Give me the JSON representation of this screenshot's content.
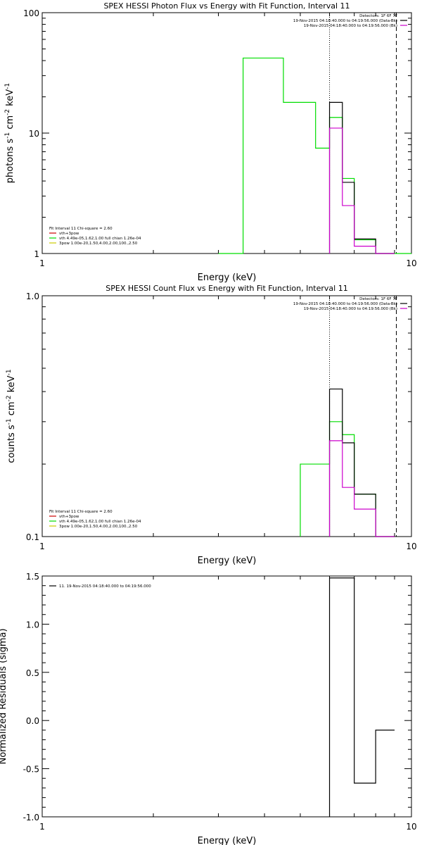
{
  "colors": {
    "data": "#000000",
    "total": "#cc00cc",
    "vth": "#00dd00",
    "bkg": "#cc0000",
    "power": "#cccc00"
  },
  "chart_data": [
    {
      "type": "line",
      "title": "SPEX HESSI Photon Flux vs Energy with Fit Function, Interval 11",
      "xlabel": "Energy (keV)",
      "ylabel": [
        "photons s",
        "-1",
        " cm",
        "-2",
        " keV",
        "-1"
      ],
      "xscale": "log",
      "yscale": "log",
      "xlim": [
        1,
        10
      ],
      "ylim": [
        1,
        100
      ],
      "x_ticks": [
        {
          "v": 1,
          "label": "1"
        },
        {
          "v": 10,
          "label": "10"
        }
      ],
      "y_ticks": [
        {
          "v": 1,
          "label": "1"
        },
        {
          "v": 10,
          "label": "10"
        },
        {
          "v": 100,
          "label": "100"
        }
      ],
      "vlines": [
        {
          "x": 6.0,
          "style": "dotted"
        },
        {
          "x": 9.1,
          "style": "dashed"
        }
      ],
      "header": [
        {
          "text": "Detectors: 1F 6F 7F",
          "color": "data"
        },
        {
          "text": "19-Nov-2015 04:18:40.000 to 04:19:56.000 (Data-Bk)",
          "color": "data"
        },
        {
          "text": "19-Nov-2015 04:18:40.000 to 04:19:56.000 (Bk)",
          "color": "total"
        }
      ],
      "legend": [
        {
          "text": "Fit Interval 11    Chi-square = 2.60",
          "color": "data"
        },
        {
          "text": "vth+3pow",
          "color": "bkg"
        },
        {
          "text": "vth 4.49e-05,1.62,1.00   full chian 1.26e-04",
          "color": "vth"
        },
        {
          "text": "3pow 1.00e-20,1.50,4.00,2.00,100.,2.50",
          "color": "power"
        }
      ],
      "series": [
        {
          "name": "vth 4.49e-05,1.62,1.00   full chian 1.26e-04",
          "color": "vth",
          "edges": [
            3.0,
            3.5,
            4.0,
            4.5,
            5.0,
            5.5,
            6.0,
            6.5,
            7.0,
            8.0,
            9.0,
            10.0
          ],
          "values": [
            0,
            42,
            42,
            18,
            18,
            7.5,
            13.5,
            4.2,
            1.3,
            0,
            0
          ]
        },
        {
          "name": "Data",
          "color": "data",
          "edges": [
            6.0,
            6.5,
            7.0,
            8.0,
            9.0
          ],
          "values": [
            18,
            3.9,
            1.32,
            0
          ]
        },
        {
          "name": "vth+3pow",
          "color": "total",
          "edges": [
            6.0,
            6.5,
            7.0,
            8.0,
            9.0
          ],
          "values": [
            11,
            2.5,
            1.15,
            0
          ]
        }
      ]
    },
    {
      "type": "line",
      "title": "SPEX HESSI Count Flux vs Energy with Fit Function, Interval 11",
      "xlabel": "Energy (keV)",
      "ylabel": [
        "counts s",
        "-1",
        " cm",
        "-2",
        " keV",
        "-1"
      ],
      "xscale": "log",
      "yscale": "log",
      "xlim": [
        1,
        10
      ],
      "ylim": [
        0.1,
        1.0
      ],
      "x_ticks": [
        {
          "v": 1,
          "label": "1"
        },
        {
          "v": 10,
          "label": "10"
        }
      ],
      "y_ticks": [
        {
          "v": 0.1,
          "label": "0.1"
        },
        {
          "v": 1.0,
          "label": "1.0"
        }
      ],
      "vlines": [
        {
          "x": 6.0,
          "style": "dotted"
        },
        {
          "x": 9.1,
          "style": "dashed"
        }
      ],
      "header": [
        {
          "text": "Detectors: 1F 6F 7F",
          "color": "data"
        },
        {
          "text": "19-Nov-2015 04:18:40.000 to 04:19:56.000 (Data-Bk)",
          "color": "data"
        },
        {
          "text": "19-Nov-2015 04:18:40.000 to 04:19:56.000 (Bk)",
          "color": "total"
        }
      ],
      "legend": [
        {
          "text": "Fit Interval 11    Chi-square = 2.60",
          "color": "data"
        },
        {
          "text": "vth+3pow",
          "color": "bkg"
        },
        {
          "text": "vth 4.49e-05,1.62,1.00   full chian 1.26e-04",
          "color": "vth"
        },
        {
          "text": "3pow 1.00e-20,1.50,4.00,2.00,100.,2.50",
          "color": "power"
        }
      ],
      "series": [
        {
          "name": "vth 4.49e-05,1.62,1.00   full chian 1.26e-04",
          "color": "vth",
          "edges": [
            5.0,
            5.5,
            6.0,
            6.5,
            7.0,
            8.0,
            9.0
          ],
          "values": [
            0.2,
            0.2,
            0.3,
            0.265,
            0.15,
            0
          ]
        },
        {
          "name": "Data",
          "color": "data",
          "edges": [
            6.0,
            6.5,
            7.0,
            8.0,
            9.0
          ],
          "values": [
            0.41,
            0.245,
            0.15,
            0
          ]
        },
        {
          "name": "vth+3pow",
          "color": "total",
          "edges": [
            6.0,
            6.5,
            7.0,
            8.0,
            9.0
          ],
          "values": [
            0.25,
            0.16,
            0.13,
            0
          ]
        }
      ]
    },
    {
      "type": "line",
      "title": "",
      "xlabel": "Energy (keV)",
      "ylabel": [
        "Normalized Residuals (sigma)"
      ],
      "xscale": "log",
      "yscale": "linear",
      "xlim": [
        1,
        10
      ],
      "ylim": [
        -1.0,
        1.5
      ],
      "x_ticks": [
        {
          "v": 1,
          "label": "1"
        },
        {
          "v": 10,
          "label": "10"
        }
      ],
      "y_ticks": [
        {
          "v": -1.0,
          "label": "-1.0"
        },
        {
          "v": -0.5,
          "label": "-0.5"
        },
        {
          "v": 0.0,
          "label": "0.0"
        },
        {
          "v": 0.5,
          "label": "0.5"
        },
        {
          "v": 1.0,
          "label": "1.0"
        },
        {
          "v": 1.5,
          "label": "1.5"
        }
      ],
      "vlines": [],
      "header": [],
      "legend": [
        {
          "text": "11. 19-Nov-2015 04:18:40.000 to 04:19:56.000",
          "color": "data"
        }
      ],
      "series": [
        {
          "name": "11. 19-Nov-2015 04:18:40.000 to 04:19:56.000",
          "color": "data",
          "edges": [
            6.0,
            7.0,
            8.0,
            9.0
          ],
          "values": [
            1.48,
            -0.65,
            -0.1
          ]
        }
      ]
    }
  ]
}
